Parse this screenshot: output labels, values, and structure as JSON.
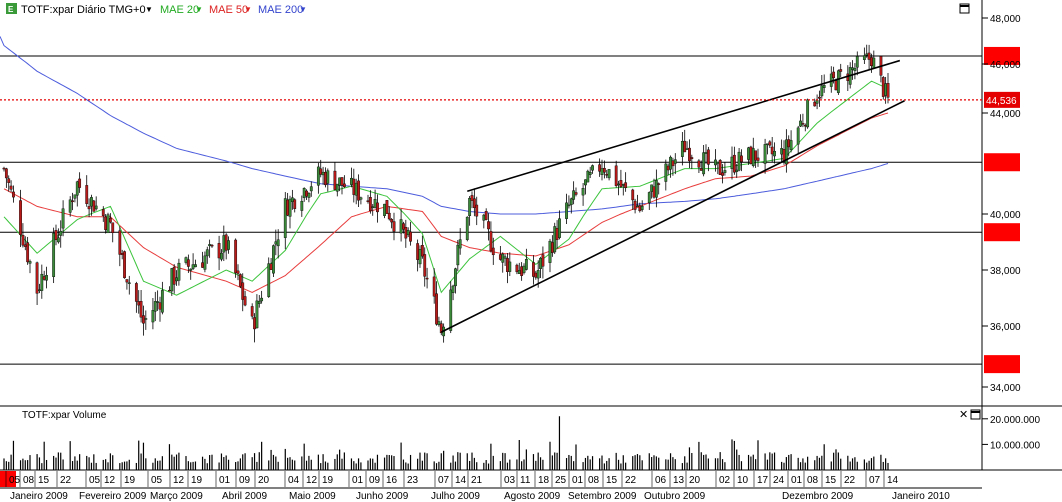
{
  "header": {
    "symbol": "TOTF:xpar Diário TMG+0",
    "ma20_label": "MAE 20",
    "ma50_label": "MAE 50",
    "ma200_label": "MAE 200",
    "symbol_dropdown_icon": "caret-down",
    "window_icon": "maximize-square"
  },
  "volume_header": {
    "label": "TOTF:xpar Volume",
    "close_icon": "close-x",
    "maximize_icon": "maximize-square"
  },
  "colors": {
    "up_candle": "#3a8a3a",
    "down_candle": "#b81a1a",
    "ma20": "#3cc43c",
    "ma50": "#e83c3c",
    "ma200": "#4c5cdc",
    "price_marker": "#e40000",
    "trendline": "#000000",
    "hline_marker": "#ff0000"
  },
  "chart_data": {
    "type": "candlestick",
    "price_axis": {
      "ticks": [
        "48,000",
        "46,000",
        "44,000",
        "40,000",
        "38,000",
        "36,000",
        "34,000"
      ],
      "tick_values": [
        48,
        46,
        44,
        40,
        38,
        36,
        34
      ],
      "range": [
        33.4,
        48.7
      ]
    },
    "last_price_label": "44,536",
    "last_price": 44.536,
    "horizontal_levels": [
      46.35,
      42.05,
      39.35,
      34.75
    ],
    "trendlines": [
      {
        "from": [
          "2009-07-20",
          40.9
        ],
        "to": [
          "2010-01-19",
          46.15
        ]
      },
      {
        "from": [
          "2009-07-09",
          35.8
        ],
        "to": [
          "2010-01-21",
          44.5
        ]
      }
    ],
    "volume_axis": {
      "ticks": [
        "20.000.000",
        "10.000.000"
      ],
      "tick_values": [
        20000000,
        10000000
      ],
      "range": [
        0,
        25000000
      ]
    },
    "x_day_ticks": [
      "05",
      "08",
      "15",
      "22",
      "05",
      "12",
      "19",
      "05",
      "12",
      "19",
      "01",
      "09",
      "20",
      "04",
      "12",
      "19",
      "01",
      "09",
      "16",
      "23",
      "07",
      "14",
      "21",
      "03",
      "11",
      "18",
      "25",
      "01",
      "08",
      "15",
      "22",
      "06",
      "13",
      "20",
      "02",
      "10",
      "17",
      "24",
      "01",
      "08",
      "15",
      "22",
      "07",
      "14"
    ],
    "x_month_labels": [
      "Janeiro 2009",
      "Fevereiro 2009",
      "Março 2009",
      "Abril 2009",
      "Maio 2009",
      "Junho 2009",
      "Julho 2009",
      "Agosto 2009",
      "Setembro 2009",
      "Outubro 2009",
      "Dezembro 2009",
      "Janeiro 2010"
    ],
    "series_closes": {
      "dates": [
        "2009-01-05",
        "2009-01-19",
        "2009-02-05",
        "2009-02-19",
        "2009-03-05",
        "2009-03-19",
        "2009-04-09",
        "2009-04-20",
        "2009-05-04",
        "2009-05-19",
        "2009-06-01",
        "2009-06-16",
        "2009-07-01",
        "2009-07-09",
        "2009-07-21",
        "2009-08-03",
        "2009-08-18",
        "2009-09-01",
        "2009-09-15",
        "2009-10-01",
        "2009-10-20",
        "2009-11-02",
        "2009-11-17",
        "2009-12-01",
        "2009-12-15",
        "2010-01-07",
        "2010-01-14"
      ],
      "close": [
        41.8,
        37.3,
        41.2,
        39.6,
        36.1,
        37.9,
        38.9,
        36.0,
        40.3,
        41.6,
        41.0,
        40.2,
        38.2,
        35.9,
        40.5,
        38.4,
        37.8,
        40.3,
        42.0,
        40.2,
        42.7,
        41.7,
        42.3,
        42.4,
        44.8,
        46.3,
        44.5
      ]
    },
    "ma20": [
      39.9,
      38.6,
      39.8,
      40.3,
      37.6,
      37.1,
      38.0,
      37.6,
      38.7,
      40.8,
      41.1,
      40.7,
      39.3,
      37.2,
      38.4,
      39.2,
      38.2,
      39.1,
      41.0,
      41.1,
      41.8,
      41.8,
      42.0,
      42.2,
      43.6,
      45.3,
      45.0
    ],
    "ma50": [
      41.0,
      40.3,
      39.9,
      39.9,
      38.8,
      38.1,
      37.6,
      37.2,
      37.8,
      38.9,
      39.9,
      40.3,
      40.1,
      39.2,
      38.8,
      38.6,
      38.5,
      38.9,
      39.7,
      40.3,
      41.0,
      41.4,
      41.5,
      41.9,
      42.7,
      43.8,
      44.0
    ],
    "ma200": [
      46.8,
      45.7,
      44.8,
      43.9,
      43.2,
      42.6,
      42.1,
      41.8,
      41.5,
      41.2,
      41.1,
      41.0,
      40.7,
      40.3,
      40.1,
      40.0,
      40.0,
      40.1,
      40.2,
      40.4,
      40.5,
      40.6,
      40.8,
      41.0,
      41.3,
      41.8,
      42.0
    ]
  }
}
